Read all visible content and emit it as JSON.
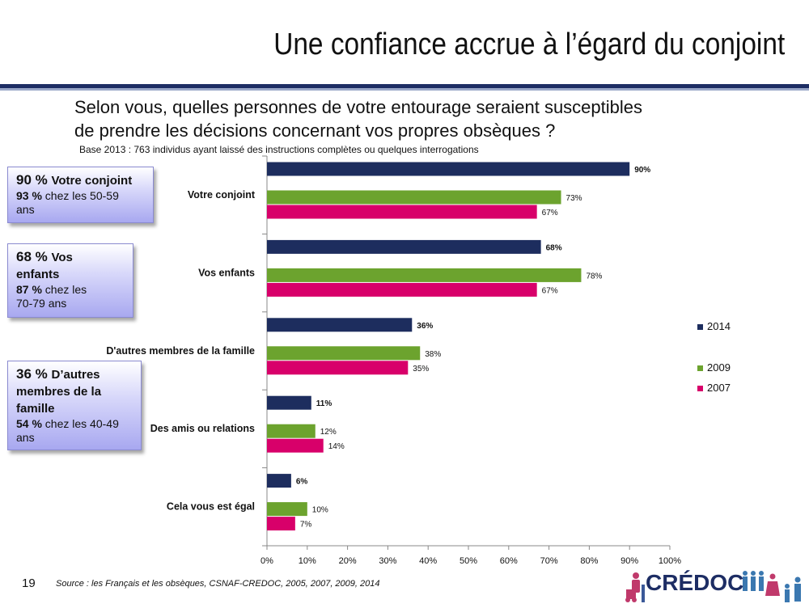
{
  "title": "Une confiance accrue à l’égard du conjoint",
  "question_line1": "Selon vous, quelles personnes de votre entourage seraient susceptibles",
  "question_line2": "de prendre les décisions concernant vos propres obsèques ?",
  "base_note": "Base 2013 : 763 individus ayant laissé des instructions complètes ou quelques interrogations",
  "callouts": [
    {
      "pct": "90 %",
      "label": "Votre conjoint",
      "sub_pct": "93 %",
      "sub_text": " chez les 50-59",
      "sub_text2": "ans"
    },
    {
      "pct": "68 %",
      "label": "Vos",
      "label2": "enfants",
      "sub_pct": "87 %",
      "sub_text": " chez les",
      "sub_text2": "70-79 ans"
    },
    {
      "pct": "36 %",
      "label": "D’autres",
      "label2": "membres de la",
      "label3": "famille",
      "sub_pct": "54 %",
      "sub_text": " chez les 40-49",
      "sub_text2": "ans"
    }
  ],
  "chart_data": {
    "type": "bar",
    "orientation": "horizontal",
    "categories": [
      "Votre conjoint",
      "Vos enfants",
      "D'autres membres de la famille",
      "Des amis ou relations",
      "Cela vous est égal"
    ],
    "series": [
      {
        "name": "2014",
        "values": [
          90,
          68,
          36,
          11,
          6
        ],
        "color": "#1d2d5e",
        "label_bold": true
      },
      {
        "name": "2009",
        "values": [
          73,
          78,
          38,
          12,
          10
        ],
        "color": "#6ca32e",
        "label_bold": false
      },
      {
        "name": "2007",
        "values": [
          67,
          67,
          35,
          14,
          7
        ],
        "color": "#d8006a",
        "label_bold": false
      }
    ],
    "data_labels": [
      [
        "90%",
        "68%",
        "36%",
        "11%",
        "6%"
      ],
      [
        "73%",
        "78%",
        "38%",
        "12%",
        "10%"
      ],
      [
        "67%",
        "67%",
        "35%",
        "14%",
        "7%"
      ]
    ],
    "x_ticks": [
      "0%",
      "10%",
      "20%",
      "30%",
      "40%",
      "50%",
      "60%",
      "70%",
      "80%",
      "90%",
      "100%"
    ],
    "xlim": [
      0,
      100
    ],
    "grid": false,
    "legend": {
      "placement": "right",
      "entries": [
        "2014",
        "2009",
        "2007"
      ]
    }
  },
  "page_number": "19",
  "source": "Source : les Français et les obsèques, CSNAF-CREDOC, 2005, 2007, 2009, 2014",
  "logo_text": "CRÉDOC"
}
